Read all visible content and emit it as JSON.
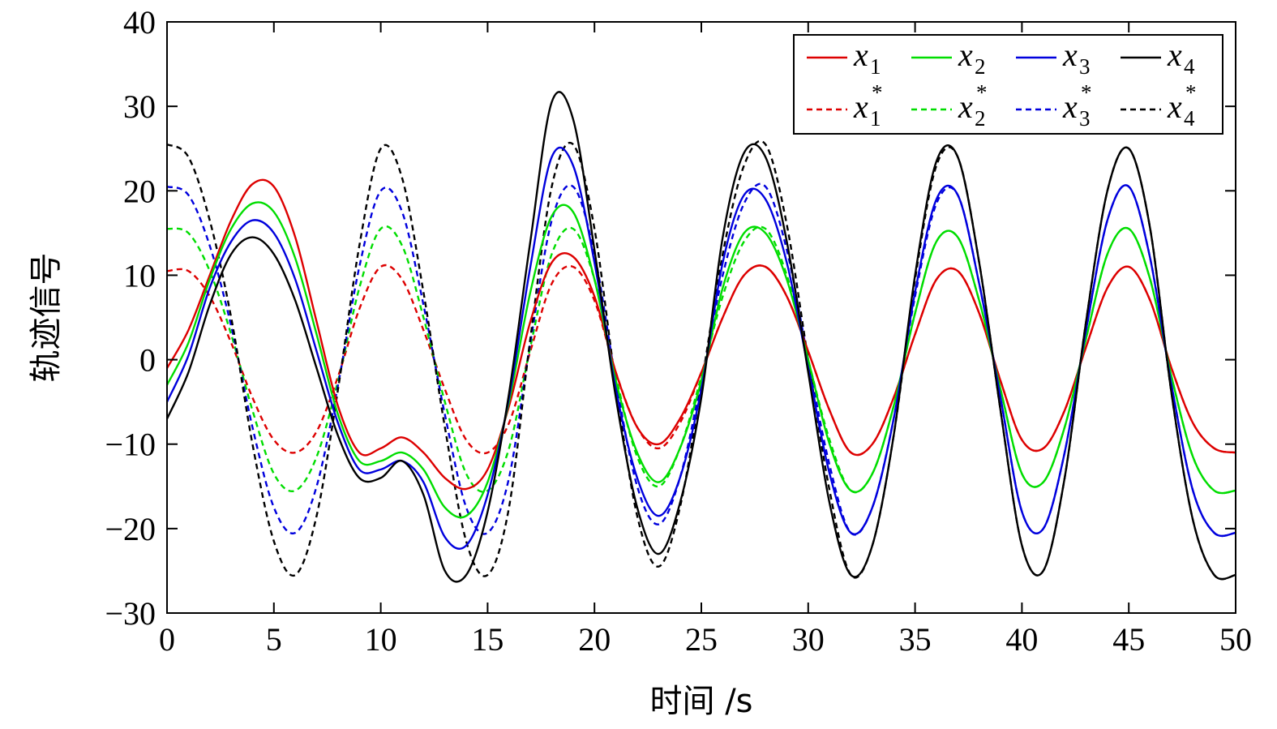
{
  "chart_data": {
    "type": "line",
    "xlabel": "时间 /s",
    "ylabel": "轨迹信号",
    "xlim": [
      0,
      50
    ],
    "ylim": [
      -30,
      40
    ],
    "xticks": [
      0,
      5,
      10,
      15,
      20,
      25,
      30,
      35,
      40,
      45,
      50
    ],
    "xtick_labels": [
      "0",
      "5",
      "10",
      "15",
      "20",
      "25",
      "30",
      "35",
      "40",
      "45",
      "50"
    ],
    "yticks": [
      -30,
      -20,
      -10,
      0,
      10,
      20,
      30,
      40
    ],
    "ytick_labels": [
      "−30",
      "−20",
      "−10",
      "0",
      "10",
      "20",
      "30",
      "40"
    ],
    "grid": false,
    "legend_position": "top-right",
    "legend_columns": 4,
    "x": [
      0,
      1,
      2,
      3,
      4,
      5,
      6,
      7,
      8,
      9,
      10,
      11,
      12,
      13,
      14,
      15,
      16,
      17,
      18,
      19,
      20,
      21,
      22,
      23,
      24,
      25,
      26,
      27,
      28,
      29,
      30,
      31,
      32,
      33,
      34,
      35,
      36,
      37,
      38,
      39,
      40,
      41,
      42,
      43,
      44,
      45,
      46,
      47,
      48,
      49,
      50
    ],
    "series": [
      {
        "name": "x",
        "subscript": "1",
        "superscript": "",
        "color": "#dd0000",
        "dash": "solid",
        "values": [
          -1.0,
          3.5,
          10,
          16.5,
          20.8,
          20.5,
          14.5,
          4.5,
          -5.5,
          -11,
          -10.5,
          -9.2,
          -11,
          -14,
          -15.3,
          -13,
          -5.5,
          4.5,
          11.5,
          12.2,
          7.5,
          -1.5,
          -8,
          -10,
          -7,
          -1.5,
          5,
          10,
          11,
          7.5,
          1,
          -6,
          -11,
          -10,
          -4.5,
          3,
          9.5,
          10.5,
          5.5,
          -2.5,
          -9.5,
          -10.5,
          -6,
          1.5,
          8.5,
          11,
          7,
          -1,
          -7.5,
          -10.5,
          -11
        ]
      },
      {
        "name": "x",
        "subscript": "2",
        "superscript": "",
        "color": "#00dd00",
        "dash": "solid",
        "values": [
          -3.0,
          2,
          9.5,
          15.5,
          18.5,
          17.5,
          12,
          3,
          -6.5,
          -12,
          -12,
          -11,
          -13,
          -17.5,
          -18.5,
          -14.5,
          -5,
          8,
          17,
          17.5,
          9.5,
          -2.5,
          -11,
          -14.5,
          -10.5,
          -2.5,
          8.5,
          15,
          15,
          9.5,
          0,
          -10,
          -15.5,
          -13.5,
          -5.5,
          5.5,
          14,
          14.5,
          7,
          -3.5,
          -13.5,
          -14.5,
          -8,
          2.5,
          12.5,
          15.5,
          9.5,
          -2,
          -11.5,
          -15.5,
          -15.5
        ]
      },
      {
        "name": "x",
        "subscript": "3",
        "superscript": "",
        "color": "#0000dd",
        "dash": "solid",
        "values": [
          -5.0,
          0.5,
          8.5,
          14,
          16.5,
          15,
          9.5,
          1,
          -7.5,
          -13,
          -13,
          -12,
          -14.5,
          -21,
          -22,
          -16,
          -4.5,
          11,
          24,
          23,
          11.5,
          -3.5,
          -14,
          -18.5,
          -14,
          -3.5,
          11.5,
          19.5,
          19,
          11.5,
          -1,
          -13.5,
          -20.5,
          -17.5,
          -7,
          8,
          19,
          19.5,
          9,
          -4.5,
          -18,
          -20,
          -11,
          3.5,
          16.5,
          20.5,
          12,
          -3,
          -15.5,
          -20.5,
          -20.5
        ]
      },
      {
        "name": "x",
        "subscript": "4",
        "superscript": "",
        "color": "#000000",
        "dash": "solid",
        "values": [
          -7.0,
          -1.5,
          6.5,
          12.5,
          14.5,
          12.5,
          7,
          -1,
          -9,
          -14,
          -14,
          -12,
          -16,
          -25,
          -25.5,
          -18,
          -4,
          14,
          30.5,
          28.5,
          13,
          -4.5,
          -17.5,
          -23,
          -17,
          -4.5,
          14.5,
          24.5,
          24,
          14,
          -1.5,
          -17,
          -25.5,
          -22,
          -9,
          10,
          23.5,
          24,
          11.5,
          -6,
          -22,
          -25,
          -14,
          4.5,
          20,
          25,
          15.5,
          -4,
          -19,
          -25.5,
          -25.5
        ]
      },
      {
        "name": "x",
        "subscript": "1",
        "superscript": "*",
        "color": "#dd0000",
        "dash": "dashed",
        "values": [
          10.5,
          10.5,
          7.5,
          2,
          -4.5,
          -9.5,
          -11,
          -8.5,
          -2,
          6,
          11,
          9.5,
          3.5,
          -3.5,
          -9.5,
          -11,
          -7.5,
          1,
          9,
          11,
          7,
          -1.5,
          -8,
          -10.5,
          -7.5,
          -1.5,
          5,
          10,
          11,
          7.5,
          1,
          -6,
          -11,
          -10,
          -4.5,
          3,
          9.5,
          10.5,
          5.5,
          -2.5,
          -9.5,
          -10.5,
          -6,
          1.5,
          8.5,
          11,
          7,
          -1,
          -7.5,
          -10.5,
          -11
        ]
      },
      {
        "name": "x",
        "subscript": "2",
        "superscript": "*",
        "color": "#00dd00",
        "dash": "dashed",
        "values": [
          15.5,
          15,
          10.5,
          3,
          -6,
          -13.5,
          -15.5,
          -11.5,
          -2.5,
          8.5,
          15.5,
          13.5,
          5,
          -5,
          -13.5,
          -15.5,
          -10.5,
          1.5,
          12.5,
          15.5,
          9.5,
          -2,
          -11.5,
          -15,
          -10.5,
          -2,
          7.5,
          14,
          15.5,
          10,
          0,
          -9.5,
          -15.5,
          -13.5,
          -5.5,
          5.5,
          14,
          14.5,
          7,
          -3.5,
          -13.5,
          -14.5,
          -8,
          2.5,
          12.5,
          15.5,
          9.5,
          -2,
          -11.5,
          -15.5,
          -15.5
        ]
      },
      {
        "name": "x",
        "subscript": "3",
        "superscript": "*",
        "color": "#0000dd",
        "dash": "dashed",
        "values": [
          20.5,
          19.5,
          13.5,
          4,
          -8,
          -17.5,
          -20.5,
          -15,
          -3,
          11,
          20,
          17.5,
          6.5,
          -6.5,
          -17.5,
          -20.5,
          -14,
          2,
          16.5,
          20.5,
          12.5,
          -2.5,
          -15,
          -19.5,
          -14,
          -2.5,
          10,
          18.5,
          20.5,
          13,
          0,
          -12.5,
          -20.5,
          -17.5,
          -7,
          7.5,
          18.5,
          19.5,
          9,
          -4.5,
          -18,
          -20,
          -11,
          3.5,
          16.5,
          20.5,
          12,
          -3,
          -15.5,
          -20.5,
          -20.5
        ]
      },
      {
        "name": "x",
        "subscript": "4",
        "superscript": "*",
        "color": "#000000",
        "dash": "dashed",
        "values": [
          25.5,
          24,
          16.5,
          5,
          -10,
          -21.5,
          -25.5,
          -18.5,
          -3.5,
          13.5,
          25,
          21.5,
          8,
          -8,
          -21.5,
          -25.5,
          -17.5,
          2.5,
          20.5,
          25.5,
          15.5,
          -3,
          -18.5,
          -24.5,
          -17.5,
          -3,
          12.5,
          23,
          25.5,
          16,
          0,
          -15.5,
          -25.5,
          -22,
          -9,
          9.5,
          23,
          24,
          11.5,
          -6,
          -22,
          -25,
          -14,
          4.5,
          20,
          25,
          15.5,
          -4,
          -19,
          -25.5,
          -25.5
        ]
      }
    ]
  }
}
